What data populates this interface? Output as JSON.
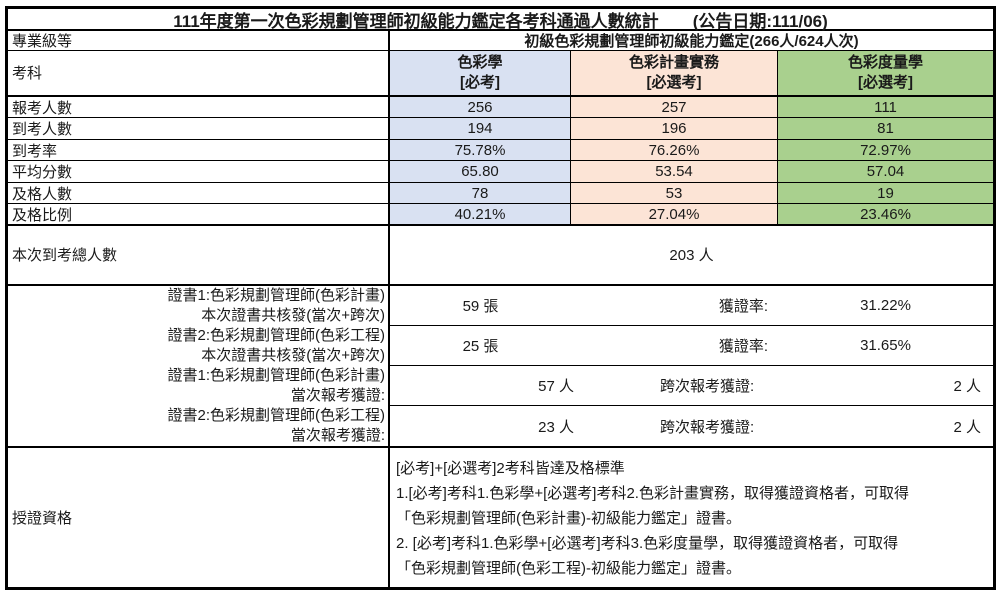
{
  "title": "111年度第一次色彩規劃管理師初級能力鑑定各考科通過人數統計",
  "announce": "(公告日期:111/06)",
  "level_row": {
    "label": "專業級等",
    "value": "初級色彩規劃管理師初級能力鑑定(266人/624人次)"
  },
  "subjects_row_label": "考科",
  "columns": [
    {
      "name": "色彩學",
      "tag": "[必考]",
      "color": "#D9E1F2"
    },
    {
      "name": "色彩計畫實務",
      "tag": "[必選考]",
      "color": "#FCE4D6"
    },
    {
      "name": "色彩度量學",
      "tag": "[必選考]",
      "color": "#A9D08E"
    }
  ],
  "stat_rows": [
    {
      "label": "報考人數",
      "values": [
        "256",
        "257",
        "111"
      ]
    },
    {
      "label": "到考人數",
      "values": [
        "194",
        "196",
        "81"
      ]
    },
    {
      "label": "到考率",
      "values": [
        "75.78%",
        "76.26%",
        "72.97%"
      ]
    },
    {
      "label": "平均分數",
      "values": [
        "65.80",
        "53.54",
        "57.04"
      ]
    },
    {
      "label": "及格人數",
      "values": [
        "78",
        "53",
        "19"
      ]
    },
    {
      "label": "及格比例",
      "values": [
        "40.21%",
        "27.04%",
        "23.46%"
      ]
    }
  ],
  "total_row": {
    "label": "本次到考總人數",
    "value": "203 人"
  },
  "cert_rows": [
    {
      "label_line1": "證書1:色彩規劃管理師(色彩計畫)",
      "label_line2": "本次證書共核發(當次+跨次)",
      "value": "59 張",
      "mid_label": "獲證率:",
      "right_value": "31.22%"
    },
    {
      "label_line1": "證書2:色彩規劃管理師(色彩工程)",
      "label_line2": "本次證書共核發(當次+跨次)",
      "value": "25 張",
      "mid_label": "獲證率:",
      "right_value": "31.65%"
    },
    {
      "label_line1": "證書1:色彩規劃管理師(色彩計畫)",
      "label_line2": "當次報考獲證:",
      "value": "57 人",
      "mid_label": "跨次報考獲證:",
      "right_value": "2 人"
    },
    {
      "label_line1": "證書2:色彩規劃管理師(色彩工程)",
      "label_line2": "當次報考獲證:",
      "value": "23 人",
      "mid_label": "跨次報考獲證:",
      "right_value": "2 人"
    }
  ],
  "qualification": {
    "label": "授證資格",
    "lines": [
      "[必考]+[必選考]2考科皆達及格標準",
      "1.[必考]考科1.色彩學+[必選考]考科2.色彩計畫實務，取得獲證資格者，可取得",
      "「色彩規劃管理師(色彩計畫)-初級能力鑑定」證書。",
      "2. [必考]考科1.色彩學+[必選考]考科3.色彩度量學，取得獲證資格者，可取得",
      "「色彩規劃管理師(色彩工程)-初級能力鑑定」證書。"
    ]
  }
}
